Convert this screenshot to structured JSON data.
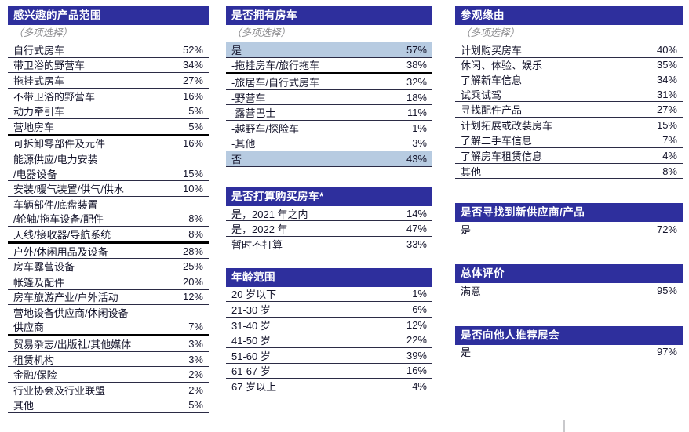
{
  "colors": {
    "header_bg": "#2e2f9d",
    "header_text": "#ffffff",
    "row_text": "#14142b",
    "subtitle_text": "#8f8f92",
    "highlight_row_bg": "#b7cbe1",
    "thin_border": "#2b2b45",
    "thick_border": "#000000"
  },
  "columns": [
    {
      "tables": [
        {
          "title": "感兴趣的产品范围",
          "subtitle": "（多项选择）",
          "rows": [
            {
              "label": "自行式房车",
              "value": "52%",
              "divider": "thin"
            },
            {
              "label": "带卫浴的野营车",
              "value": "34%",
              "divider": "thin"
            },
            {
              "label": "拖挂式房车",
              "value": "27%",
              "divider": "thin"
            },
            {
              "label": "不带卫浴的野营车",
              "value": "16%",
              "divider": "thin"
            },
            {
              "label": "动力牵引车",
              "value": "5%",
              "divider": "thin"
            },
            {
              "label": "营地房车",
              "value": "5%",
              "divider": "thick"
            },
            {
              "label": "可拆卸零部件及元件",
              "value": "16%",
              "divider": "thin"
            },
            {
              "label": "能源供应/电力安装",
              "value": "",
              "divider": "none"
            },
            {
              "label": "/电器设备",
              "value": "15%",
              "divider": "thin"
            },
            {
              "label": "安装/暖气装置/供气/供水",
              "value": "10%",
              "divider": "thin"
            },
            {
              "label": "车辆部件/底盘装置",
              "value": "",
              "divider": "none"
            },
            {
              "label": "/轮轴/拖车设备/配件",
              "value": "8%",
              "divider": "thin"
            },
            {
              "label": "天线/接收器/导航系统",
              "value": "8%",
              "divider": "thick"
            },
            {
              "label": "户外/休闲用品及设备",
              "value": "28%",
              "divider": "thin"
            },
            {
              "label": "房车露营设备",
              "value": "25%",
              "divider": "thin"
            },
            {
              "label": "帐篷及配件",
              "value": "20%",
              "divider": "thin"
            },
            {
              "label": "房车旅游产业/户外活动",
              "value": "12%",
              "divider": "thin"
            },
            {
              "label": "营地设备供应商/休闲设备",
              "value": "",
              "divider": "none"
            },
            {
              "label": "供应商",
              "value": "7%",
              "divider": "thick"
            },
            {
              "label": "贸易杂志/出版社/其他媒体",
              "value": "3%",
              "divider": "thin"
            },
            {
              "label": "租赁机构",
              "value": "3%",
              "divider": "thin"
            },
            {
              "label": "金融/保险",
              "value": "2%",
              "divider": "thin"
            },
            {
              "label": "行业协会及行业联盟",
              "value": "2%",
              "divider": "thin"
            },
            {
              "label": "其他",
              "value": "5%",
              "divider": "thin"
            }
          ]
        }
      ]
    },
    {
      "tables": [
        {
          "title": "是否拥有房车",
          "subtitle": "（多项选择）",
          "rows": [
            {
              "label": "是",
              "value": "57%",
              "divider": "thin",
              "highlight": true
            },
            {
              "label": "-拖挂房车/旅行拖车",
              "value": "38%",
              "divider": "thick"
            },
            {
              "label": "-旅居车/自行式房车",
              "value": "32%",
              "divider": "thin"
            },
            {
              "label": "-野营车",
              "value": "18%",
              "divider": "thin"
            },
            {
              "label": "-露营巴士",
              "value": "11%",
              "divider": "thin"
            },
            {
              "label": "-越野车/探险车",
              "value": "1%",
              "divider": "thin"
            },
            {
              "label": "-其他",
              "value": "3%",
              "divider": "thin"
            },
            {
              "label": "否",
              "value": "43%",
              "divider": "thin",
              "highlight": true
            }
          ]
        },
        {
          "title": "是否打算购买房车*",
          "rows": [
            {
              "label": "是，2021 年之内",
              "value": "14%",
              "divider": "thin"
            },
            {
              "label": "是，2022 年",
              "value": "47%",
              "divider": "thin"
            },
            {
              "label": "暂时不打算",
              "value": "33%",
              "divider": "thin"
            }
          ]
        },
        {
          "title": "年龄范围",
          "rows": [
            {
              "label": "20 岁以下",
              "value": "1%",
              "divider": "thin"
            },
            {
              "label": "21-30 岁",
              "value": "6%",
              "divider": "thin"
            },
            {
              "label": "31-40 岁",
              "value": "12%",
              "divider": "thin"
            },
            {
              "label": "41-50 岁",
              "value": "22%",
              "divider": "thin"
            },
            {
              "label": "51-60 岁",
              "value": "39%",
              "divider": "thin"
            },
            {
              "label": "61-67 岁",
              "value": "16%",
              "divider": "thin"
            },
            {
              "label": "67 岁以上",
              "value": "4%",
              "divider": "thin"
            }
          ]
        }
      ]
    },
    {
      "tables": [
        {
          "title": "参观缘由",
          "subtitle": "（多项选择）",
          "rows": [
            {
              "label": "计划购买房车",
              "value": "40%",
              "divider": "thin"
            },
            {
              "label": "休闲、体验、娱乐",
              "value": "35%",
              "divider": "none"
            },
            {
              "label": "了解新车信息",
              "value": "34%",
              "divider": "none"
            },
            {
              "label": "试乘试驾",
              "value": "31%",
              "divider": "thin"
            },
            {
              "label": "寻找配件产品",
              "value": "27%",
              "divider": "thin"
            },
            {
              "label": "计划拓展或改装房车",
              "value": "15%",
              "divider": "thin"
            },
            {
              "label": "了解二手车信息",
              "value": "7%",
              "divider": "thin"
            },
            {
              "label": "了解房车租赁信息",
              "value": "4%",
              "divider": "thin"
            },
            {
              "label": "其他",
              "value": "8%",
              "divider": "thin"
            }
          ]
        },
        {
          "title": "是否寻找到新供应商/产品",
          "rows": [
            {
              "label": "是",
              "value": "72%",
              "divider": "none"
            }
          ]
        },
        {
          "title": "总体评价",
          "rows": [
            {
              "label": "满意",
              "value": "95%",
              "divider": "none"
            }
          ]
        },
        {
          "title": "是否向他人推荐展会",
          "rows": [
            {
              "label": "是",
              "value": "97%",
              "divider": "none"
            }
          ]
        }
      ]
    }
  ]
}
